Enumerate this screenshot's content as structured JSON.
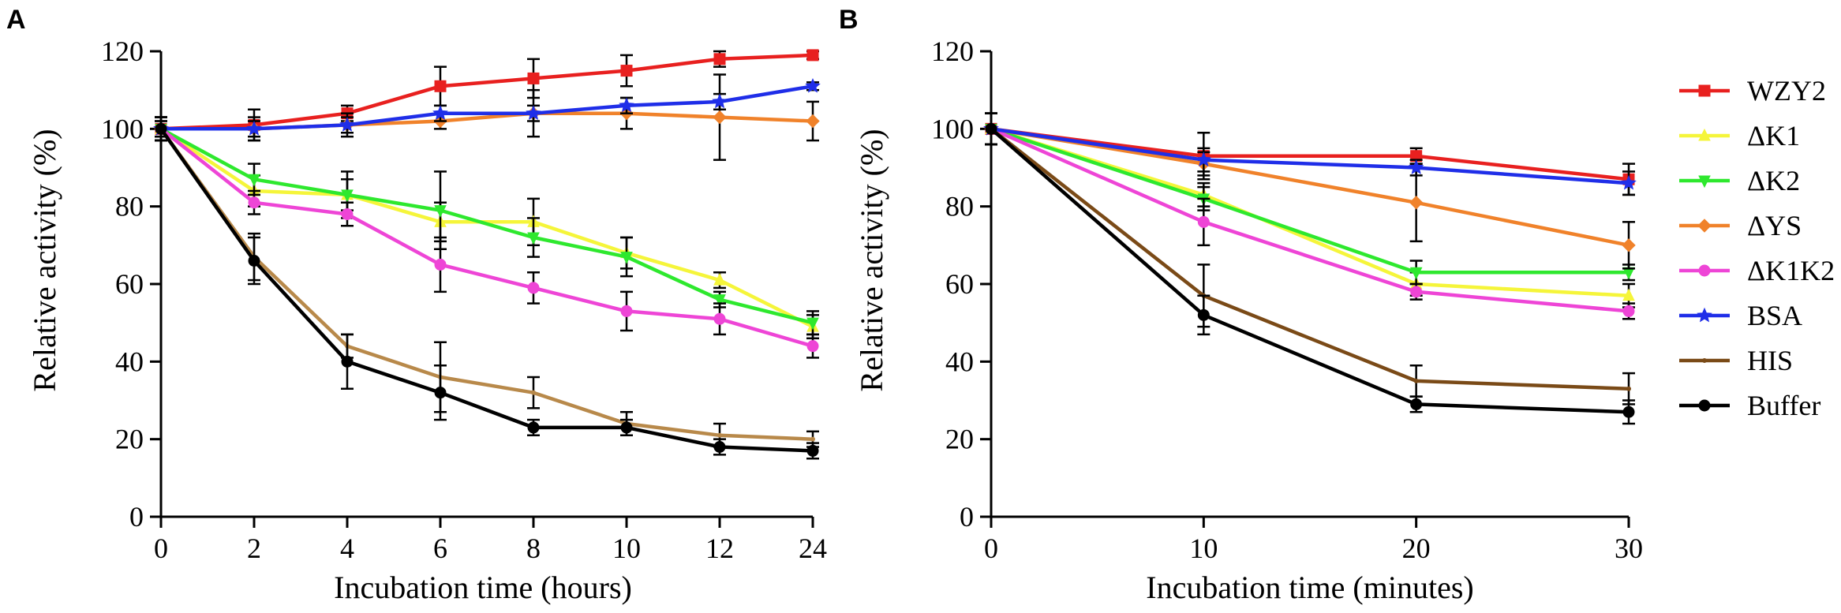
{
  "chart_data": [
    {
      "panel": "A",
      "type": "line",
      "xlabel": "Incubation time (hours)",
      "ylabel": "Relative activity (%)",
      "categories": [
        "0",
        "2",
        "4",
        "6",
        "8",
        "10",
        "12",
        "24"
      ],
      "ylim": [
        0,
        120
      ],
      "yticks": [
        0,
        20,
        40,
        60,
        80,
        100,
        120
      ],
      "series": [
        {
          "name": "WZY2",
          "color": "#e8201f",
          "marker": "square",
          "values": [
            100,
            101,
            104,
            111,
            113,
            115,
            118,
            119
          ],
          "errors": [
            2,
            4,
            2,
            5,
            5,
            4,
            2,
            1
          ]
        },
        {
          "name": "ΔK1",
          "color": "#f5f53a",
          "marker": "triangle",
          "values": [
            100,
            84,
            83,
            76,
            76,
            68,
            61,
            49
          ],
          "errors": [
            3,
            4,
            4,
            5,
            6,
            4,
            2,
            3
          ]
        },
        {
          "name": "ΔK2",
          "color": "#2ee82e",
          "marker": "triangle-down",
          "values": [
            100,
            87,
            83,
            79,
            72,
            67,
            56,
            50
          ],
          "errors": [
            3,
            4,
            6,
            10,
            5,
            5,
            2,
            3
          ]
        },
        {
          "name": "ΔYS",
          "color": "#f0822a",
          "marker": "diamond",
          "values": [
            100,
            100,
            101,
            102,
            104,
            104,
            103,
            102
          ],
          "errors": [
            3,
            3,
            3,
            2,
            6,
            4,
            11,
            5
          ]
        },
        {
          "name": "ΔK1K2",
          "color": "#ee45d6",
          "marker": "circle",
          "values": [
            100,
            81,
            78,
            65,
            59,
            53,
            51,
            44
          ],
          "errors": [
            3,
            3,
            3,
            7,
            4,
            5,
            4,
            3
          ]
        },
        {
          "name": "BSA",
          "color": "#1f2ee8",
          "marker": "star",
          "values": [
            100,
            100,
            101,
            104,
            104,
            106,
            107,
            111
          ],
          "errors": [
            2,
            2,
            2,
            2,
            2,
            2,
            2,
            1
          ]
        },
        {
          "name": "HIS",
          "color": "#b8894a",
          "marker": "none",
          "values": [
            100,
            67,
            44,
            36,
            32,
            24,
            21,
            20
          ],
          "errors": [
            3,
            6,
            3,
            9,
            4,
            3,
            3,
            2
          ]
        },
        {
          "name": "Buffer",
          "color": "#000000",
          "marker": "circle",
          "values": [
            100,
            66,
            40,
            32,
            23,
            23,
            18,
            17
          ],
          "errors": [
            3,
            6,
            7,
            7,
            2,
            2,
            2,
            2
          ]
        }
      ]
    },
    {
      "panel": "B",
      "type": "line",
      "xlabel": "Incubation time (minutes)",
      "ylabel": "Relative activity (%)",
      "x": [
        0,
        10,
        20,
        30
      ],
      "xlim": [
        0,
        30
      ],
      "xticks": [
        0,
        10,
        20,
        30
      ],
      "ylim": [
        0,
        120
      ],
      "yticks": [
        0,
        20,
        40,
        60,
        80,
        100,
        120
      ],
      "legend": {
        "placement": "right",
        "entries": [
          "WZY2",
          "ΔK1",
          "ΔK2",
          "ΔYS",
          "ΔK1K2",
          "BSA",
          "HIS",
          "Buffer"
        ]
      },
      "series": [
        {
          "name": "WZY2",
          "color": "#e8201f",
          "marker": "square",
          "values": [
            100,
            93,
            93,
            87
          ],
          "errors": [
            4,
            6,
            2,
            4
          ]
        },
        {
          "name": "ΔK1",
          "color": "#f5f53a",
          "marker": "triangle",
          "values": [
            100,
            83,
            60,
            57
          ],
          "errors": [
            4,
            3,
            3,
            3
          ]
        },
        {
          "name": "ΔK2",
          "color": "#2ee82e",
          "marker": "triangle-down",
          "values": [
            100,
            82,
            63,
            63
          ],
          "errors": [
            4,
            3,
            3,
            2
          ]
        },
        {
          "name": "ΔYS",
          "color": "#f0822a",
          "marker": "diamond",
          "values": [
            100,
            91,
            81,
            70
          ],
          "errors": [
            4,
            3,
            10,
            6
          ]
        },
        {
          "name": "ΔK1K2",
          "color": "#ee45d6",
          "marker": "circle",
          "values": [
            100,
            76,
            58,
            53
          ],
          "errors": [
            4,
            6,
            2,
            2
          ]
        },
        {
          "name": "BSA",
          "color": "#1f2ee8",
          "marker": "star",
          "values": [
            100,
            92,
            90,
            86
          ],
          "errors": [
            4,
            3,
            2,
            3
          ]
        },
        {
          "name": "HIS",
          "color": "#7a4a17",
          "marker": "none",
          "values": [
            100,
            57,
            35,
            33
          ],
          "errors": [
            4,
            8,
            4,
            4
          ]
        },
        {
          "name": "Buffer",
          "color": "#000000",
          "marker": "circle",
          "values": [
            100,
            52,
            29,
            27
          ],
          "errors": [
            4,
            5,
            2,
            3
          ]
        }
      ]
    }
  ]
}
